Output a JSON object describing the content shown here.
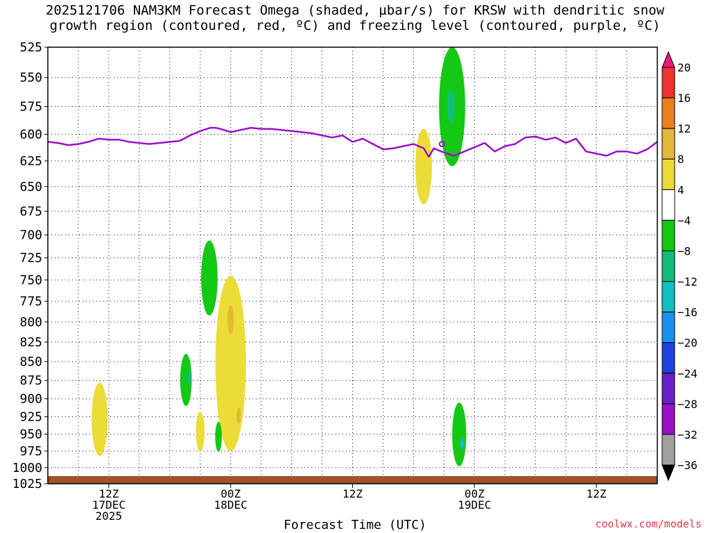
{
  "title": {
    "line1": "2025121706 NAM3KM Forecast Omega (shaded, µbar/s) for KRSW with dendritic snow",
    "line2": "growth region (contoured, red, ºC) and freezing level (contoured, purple, ºC)"
  },
  "credit": "coolwx.com/models",
  "chart_data": {
    "type": "heatmap",
    "xlabel": "Forecast Time (UTC)",
    "ylabel": "",
    "x_range_hours": [
      0,
      60
    ],
    "y_axis": {
      "scale": "log",
      "reversed": true,
      "range": [
        525,
        1025
      ],
      "ticks": [
        525,
        550,
        575,
        600,
        625,
        650,
        675,
        700,
        725,
        750,
        775,
        800,
        825,
        850,
        875,
        900,
        925,
        950,
        975,
        1000,
        1025
      ]
    },
    "x_ticks": [
      {
        "hour": 6,
        "lines": [
          "12Z",
          "17DEC",
          "2025"
        ]
      },
      {
        "hour": 18,
        "lines": [
          "00Z",
          "18DEC"
        ]
      },
      {
        "hour": 30,
        "lines": [
          "12Z"
        ]
      },
      {
        "hour": 42,
        "lines": [
          "00Z",
          "19DEC"
        ]
      },
      {
        "hour": 54,
        "lines": [
          "12Z"
        ]
      }
    ],
    "grid": true,
    "colorbar": {
      "labels": [
        "20",
        "16",
        "12",
        "8",
        "4",
        "−4",
        "−8",
        "−12",
        "−16",
        "−20",
        "−24",
        "−28",
        "−32",
        "−36"
      ],
      "colors": [
        "#f0187c",
        "#f03030",
        "#ec8020",
        "#e4b838",
        "#ebdc38",
        "#ffffff",
        "#14c814",
        "#10be78",
        "#10c0c0",
        "#1890f0",
        "#2040e0",
        "#6820c8",
        "#9810c8",
        "#a0a0a0",
        "#000000"
      ]
    },
    "freezing_level": {
      "color": "#9a10c8",
      "points": [
        [
          0,
          607
        ],
        [
          1,
          608
        ],
        [
          2,
          610
        ],
        [
          3,
          609
        ],
        [
          4,
          607
        ],
        [
          5,
          604
        ],
        [
          6,
          605
        ],
        [
          7,
          605
        ],
        [
          8,
          607
        ],
        [
          9,
          608
        ],
        [
          10,
          609
        ],
        [
          11,
          608
        ],
        [
          12,
          607
        ],
        [
          13,
          606
        ],
        [
          14,
          601
        ],
        [
          15,
          597
        ],
        [
          16,
          594
        ],
        [
          16.5,
          594
        ],
        [
          17,
          595
        ],
        [
          18,
          598
        ],
        [
          19,
          596
        ],
        [
          20,
          594
        ],
        [
          21,
          595
        ],
        [
          22,
          595
        ],
        [
          23,
          596
        ],
        [
          24,
          597
        ],
        [
          25,
          598
        ],
        [
          26,
          599
        ],
        [
          27,
          601
        ],
        [
          28,
          603
        ],
        [
          29,
          601
        ],
        [
          30,
          607
        ],
        [
          31,
          604
        ],
        [
          32,
          609
        ],
        [
          33,
          614
        ],
        [
          34,
          613
        ],
        [
          35,
          611
        ],
        [
          36,
          609
        ],
        [
          37,
          613
        ],
        [
          37.5,
          621
        ],
        [
          38,
          613
        ],
        [
          38.5,
          615
        ],
        [
          39,
          617
        ],
        [
          40,
          620
        ],
        [
          41,
          616
        ],
        [
          42,
          612
        ],
        [
          43,
          608
        ],
        [
          44,
          616
        ],
        [
          45,
          611
        ],
        [
          46,
          609
        ],
        [
          47,
          603
        ],
        [
          48,
          602
        ],
        [
          49,
          605
        ],
        [
          50,
          603
        ],
        [
          51,
          608
        ],
        [
          52,
          604
        ],
        [
          53,
          616
        ],
        [
          54,
          618
        ],
        [
          55,
          620
        ],
        [
          56,
          616
        ],
        [
          57,
          616
        ],
        [
          58,
          618
        ],
        [
          59,
          614
        ],
        [
          60,
          607
        ]
      ]
    },
    "omega_regions": [
      {
        "label": "-4 to -8",
        "color": "#14c814",
        "center_hour": 39.8,
        "p_top": 525,
        "p_bottom": 630
      },
      {
        "label": "-8 to -12",
        "color": "#10be78",
        "center_hour": 39.7,
        "p_top": 560,
        "p_bottom": 590
      },
      {
        "label": "4 to 8",
        "color": "#ebdc38",
        "center_hour": 37.0,
        "p_top": 595,
        "p_bottom": 668
      },
      {
        "label": "-4 to -8",
        "color": "#14c814",
        "center_hour": 15.9,
        "p_top": 706,
        "p_bottom": 792
      },
      {
        "label": "4 to 8",
        "color": "#ebdc38",
        "center_hour": 18.0,
        "p_top": 745,
        "p_bottom": 975
      },
      {
        "label": "8 to 12",
        "color": "#e4b838",
        "center_hour": 18.0,
        "p_top": 780,
        "p_bottom": 815
      },
      {
        "label": "8 to 12",
        "color": "#e4b838",
        "center_hour": 18.8,
        "p_top": 912,
        "p_bottom": 935
      },
      {
        "label": "-4 to -8",
        "color": "#14c814",
        "center_hour": 13.6,
        "p_top": 840,
        "p_bottom": 910
      },
      {
        "label": "-8 to -12",
        "color": "#10be78",
        "center_hour": 13.9,
        "p_top": 862,
        "p_bottom": 880
      },
      {
        "label": "4 to 8",
        "color": "#ebdc38",
        "center_hour": 5.1,
        "p_top": 878,
        "p_bottom": 982
      },
      {
        "label": "4 to 8",
        "color": "#ebdc38",
        "center_hour": 15.0,
        "p_top": 918,
        "p_bottom": 976
      },
      {
        "label": "-4 to -8",
        "color": "#14c814",
        "center_hour": 16.8,
        "p_top": 932,
        "p_bottom": 976
      },
      {
        "label": "-4 to -8",
        "color": "#14c814",
        "center_hour": 40.5,
        "p_top": 905,
        "p_bottom": 998
      },
      {
        "label": "-8 to -12",
        "color": "#10be78",
        "center_hour": 40.8,
        "p_top": 953,
        "p_bottom": 975
      },
      {
        "label": "-12 to -16",
        "color": "#10c0c0",
        "center_hour": 40.8,
        "p_top": 958,
        "p_bottom": 970
      }
    ],
    "terrain": {
      "color": "#a0522d",
      "surface_pressure": 1013
    }
  }
}
